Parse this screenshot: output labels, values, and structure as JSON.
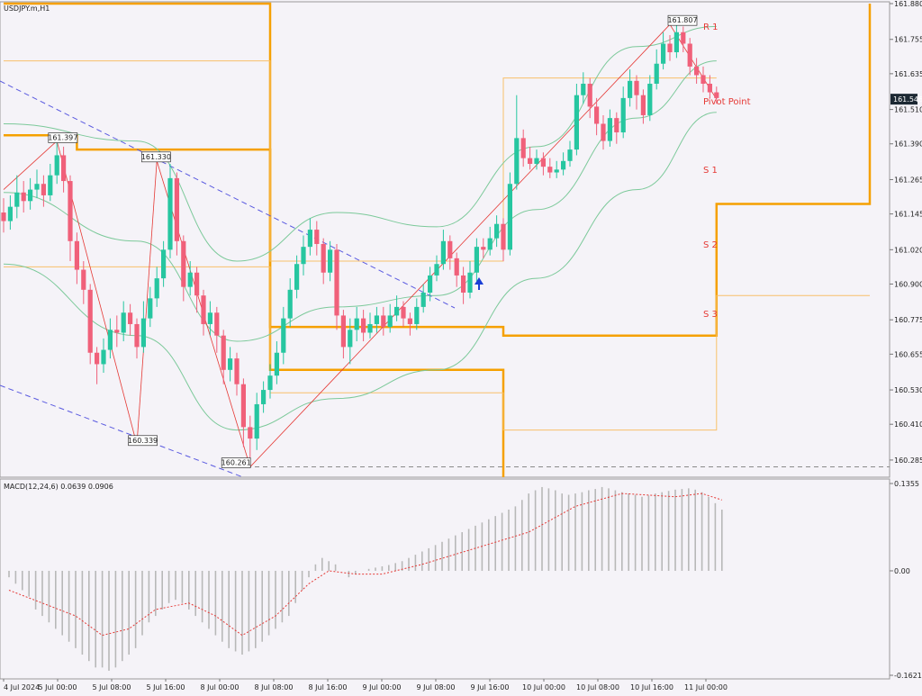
{
  "symbol_title": "USDJPY.m,H1",
  "macd_title": "MACD(12,24,6) 0.0639 0.0906",
  "colors": {
    "background": "#f5f3f8",
    "bull": "#26c6a0",
    "bear": "#f0607a",
    "bollinger": "#7cc99a",
    "pivot_thick": "#f5a000",
    "pivot_thin": "#f8c06a",
    "zigzag": "#e53935",
    "trend": "#5a5ae0",
    "macd_hist": "#b8b8b8",
    "macd_signal": "#e53935",
    "arrow": "#1a3fd6",
    "price_marker": "#1c2833"
  },
  "pivot_labels": [
    "R 1",
    "Pivot Point",
    "S 1",
    "S 2",
    "S 3"
  ],
  "chart_data": [
    {
      "type": "candlestick",
      "title": "USDJPY.m,H1",
      "x_ticks": [
        "4 Jul 2024",
        "5 Jul 00:00",
        "5 Jul 08:00",
        "5 Jul 16:00",
        "8 Jul 00:00",
        "8 Jul 08:00",
        "8 Jul 16:00",
        "9 Jul 00:00",
        "9 Jul 08:00",
        "9 Jul 16:00",
        "10 Jul 00:00",
        "10 Jul 08:00",
        "10 Jul 16:00",
        "11 Jul 00:00"
      ],
      "y_ticks": [
        161.88,
        161.755,
        161.635,
        161.51,
        161.39,
        161.265,
        161.145,
        161.02,
        160.9,
        160.775,
        160.655,
        160.53,
        160.41,
        160.285
      ],
      "ylim": [
        160.225,
        161.88
      ],
      "current_price": 161.546,
      "annotations": [
        {
          "text": "161.807",
          "price": 161.807
        },
        {
          "text": "161.397",
          "price": 161.397
        },
        {
          "text": "161.330",
          "price": 161.33
        },
        {
          "text": "160.339",
          "price": 160.339
        },
        {
          "text": "160.261",
          "price": 160.261
        }
      ],
      "candles": [
        [
          161.15,
          161.12,
          161.2,
          161.08
        ],
        [
          161.12,
          161.17,
          161.21,
          161.09
        ],
        [
          161.17,
          161.22,
          161.28,
          161.13
        ],
        [
          161.22,
          161.19,
          161.26,
          161.15
        ],
        [
          161.19,
          161.23,
          161.27,
          161.16
        ],
        [
          161.23,
          161.25,
          161.3,
          161.2
        ],
        [
          161.25,
          161.21,
          161.28,
          161.17
        ],
        [
          161.21,
          161.28,
          161.32,
          161.19
        ],
        [
          161.28,
          161.35,
          161.4,
          161.25
        ],
        [
          161.35,
          161.26,
          161.38,
          161.22
        ],
        [
          161.26,
          161.05,
          161.28,
          160.98
        ],
        [
          161.05,
          160.95,
          161.08,
          160.9
        ],
        [
          160.95,
          160.88,
          160.98,
          160.83
        ],
        [
          160.88,
          160.66,
          160.9,
          160.62
        ],
        [
          160.66,
          160.62,
          160.68,
          160.55
        ],
        [
          160.62,
          160.67,
          160.71,
          160.59
        ],
        [
          160.67,
          160.74,
          160.78,
          160.64
        ],
        [
          160.74,
          160.73,
          160.79,
          160.68
        ],
        [
          160.73,
          160.8,
          160.84,
          160.7
        ],
        [
          160.8,
          160.76,
          160.83,
          160.72
        ],
        [
          160.76,
          160.68,
          160.78,
          160.64
        ],
        [
          160.68,
          160.78,
          160.84,
          160.66
        ],
        [
          160.78,
          160.85,
          160.89,
          160.75
        ],
        [
          160.85,
          160.92,
          160.96,
          160.82
        ],
        [
          160.92,
          161.02,
          161.05,
          160.89
        ],
        [
          161.02,
          161.27,
          161.32,
          160.99
        ],
        [
          161.27,
          161.05,
          161.29,
          161.0
        ],
        [
          161.05,
          160.89,
          161.07,
          160.84
        ],
        [
          160.89,
          160.94,
          160.98,
          160.86
        ],
        [
          160.94,
          160.86,
          160.96,
          160.8
        ],
        [
          160.86,
          160.76,
          160.88,
          160.72
        ],
        [
          160.76,
          160.8,
          160.84,
          160.72
        ],
        [
          160.8,
          160.72,
          160.82,
          160.66
        ],
        [
          160.72,
          160.6,
          160.74,
          160.55
        ],
        [
          160.6,
          160.64,
          160.68,
          160.56
        ],
        [
          160.64,
          160.55,
          160.66,
          160.51
        ],
        [
          160.55,
          160.4,
          160.57,
          160.33
        ],
        [
          160.4,
          160.36,
          160.44,
          160.29
        ],
        [
          160.36,
          160.48,
          160.52,
          160.32
        ],
        [
          160.48,
          160.53,
          160.56,
          160.45
        ],
        [
          160.53,
          160.58,
          160.62,
          160.5
        ],
        [
          160.58,
          160.66,
          160.7,
          160.55
        ],
        [
          160.66,
          160.78,
          160.82,
          160.62
        ],
        [
          160.78,
          160.88,
          160.92,
          160.75
        ],
        [
          160.88,
          160.97,
          161.0,
          160.85
        ],
        [
          160.97,
          161.03,
          161.07,
          160.93
        ],
        [
          161.03,
          161.09,
          161.13,
          161.0
        ],
        [
          161.09,
          161.04,
          161.12,
          161.0
        ],
        [
          161.04,
          160.94,
          161.06,
          160.9
        ],
        [
          160.94,
          161.02,
          161.05,
          160.91
        ],
        [
          161.02,
          160.79,
          161.04,
          160.74
        ],
        [
          160.79,
          160.68,
          160.81,
          160.64
        ],
        [
          160.68,
          160.74,
          160.78,
          160.62
        ],
        [
          160.74,
          160.78,
          160.82,
          160.7
        ],
        [
          160.78,
          160.73,
          160.81,
          160.7
        ],
        [
          160.73,
          160.76,
          160.8,
          160.71
        ],
        [
          160.76,
          160.79,
          160.82,
          160.73
        ],
        [
          160.79,
          160.75,
          160.82,
          160.72
        ],
        [
          160.75,
          160.79,
          160.83,
          160.73
        ],
        [
          160.79,
          160.82,
          160.86,
          160.77
        ],
        [
          160.82,
          160.78,
          160.84,
          160.75
        ],
        [
          160.78,
          160.76,
          160.8,
          160.72
        ],
        [
          160.76,
          160.82,
          160.85,
          160.74
        ],
        [
          160.82,
          160.87,
          160.9,
          160.8
        ],
        [
          160.87,
          160.93,
          160.96,
          160.84
        ],
        [
          160.93,
          160.97,
          161.0,
          160.91
        ],
        [
          160.97,
          161.05,
          161.09,
          160.95
        ],
        [
          161.05,
          160.99,
          161.07,
          160.95
        ],
        [
          160.99,
          160.93,
          161.01,
          160.89
        ],
        [
          160.93,
          160.87,
          160.96,
          160.83
        ],
        [
          160.87,
          160.94,
          160.98,
          160.85
        ],
        [
          160.94,
          161.03,
          161.06,
          160.91
        ],
        [
          161.03,
          161.02,
          161.06,
          160.99
        ],
        [
          161.02,
          161.06,
          161.1,
          161.0
        ],
        [
          161.06,
          161.11,
          161.14,
          161.03
        ],
        [
          161.11,
          161.02,
          161.13,
          160.98
        ],
        [
          161.02,
          161.25,
          161.29,
          161.0
        ],
        [
          161.25,
          161.41,
          161.56,
          161.23
        ],
        [
          161.41,
          161.34,
          161.44,
          161.31
        ],
        [
          161.34,
          161.32,
          161.38,
          161.3
        ],
        [
          161.32,
          161.34,
          161.37,
          161.3
        ],
        [
          161.34,
          161.31,
          161.36,
          161.28
        ],
        [
          161.31,
          161.29,
          161.34,
          161.27
        ],
        [
          161.29,
          161.3,
          161.33,
          161.27
        ],
        [
          161.3,
          161.33,
          161.36,
          161.28
        ],
        [
          161.33,
          161.37,
          161.4,
          161.31
        ],
        [
          161.37,
          161.56,
          161.6,
          161.35
        ],
        [
          161.56,
          161.6,
          161.64,
          161.53
        ],
        [
          161.6,
          161.52,
          161.62,
          161.48
        ],
        [
          161.52,
          161.46,
          161.55,
          161.42
        ],
        [
          161.46,
          161.4,
          161.49,
          161.37
        ],
        [
          161.4,
          161.48,
          161.51,
          161.38
        ],
        [
          161.48,
          161.43,
          161.5,
          161.39
        ],
        [
          161.43,
          161.55,
          161.59,
          161.41
        ],
        [
          161.55,
          161.61,
          161.65,
          161.52
        ],
        [
          161.61,
          161.56,
          161.63,
          161.51
        ],
        [
          161.56,
          161.49,
          161.58,
          161.46
        ],
        [
          161.49,
          161.6,
          161.63,
          161.47
        ],
        [
          161.6,
          161.67,
          161.72,
          161.58
        ],
        [
          161.67,
          161.74,
          161.78,
          161.65
        ],
        [
          161.74,
          161.71,
          161.77,
          161.68
        ],
        [
          161.71,
          161.78,
          161.81,
          161.69
        ],
        [
          161.78,
          161.74,
          161.8,
          161.71
        ],
        [
          161.74,
          161.66,
          161.76,
          161.63
        ],
        [
          161.66,
          161.63,
          161.69,
          161.6
        ],
        [
          161.63,
          161.6,
          161.66,
          161.57
        ],
        [
          161.6,
          161.57,
          161.63,
          161.55
        ],
        [
          161.57,
          161.55,
          161.59,
          161.53
        ]
      ],
      "bollinger": {
        "upper": [
          [
            0,
            161.46
          ],
          [
            20,
            161.4
          ],
          [
            35,
            160.98
          ],
          [
            50,
            161.15
          ],
          [
            65,
            161.1
          ],
          [
            80,
            161.38
          ],
          [
            95,
            161.73
          ],
          [
            107,
            161.8
          ]
        ],
        "middle": [
          [
            0,
            161.22
          ],
          [
            20,
            161.05
          ],
          [
            35,
            160.7
          ],
          [
            50,
            160.82
          ],
          [
            65,
            160.86
          ],
          [
            80,
            161.16
          ],
          [
            95,
            161.48
          ],
          [
            107,
            161.68
          ]
        ],
        "lower": [
          [
            0,
            160.97
          ],
          [
            20,
            160.72
          ],
          [
            35,
            160.39
          ],
          [
            50,
            160.5
          ],
          [
            65,
            160.6
          ],
          [
            80,
            160.92
          ],
          [
            95,
            161.23
          ],
          [
            107,
            161.5
          ]
        ]
      },
      "pivot_levels": {
        "thick": [
          [
            [
              0,
              161.42
            ],
            [
              11,
              161.42
            ],
            [
              11,
              161.37
            ],
            [
              40,
              161.37
            ],
            [
              40,
              160.75
            ],
            [
              75,
              160.75
            ],
            [
              75,
              160.72
            ],
            [
              107,
              160.72
            ],
            [
              107,
              161.18
            ],
            [
              130,
              161.18
            ],
            [
              130,
              161.88
            ]
          ],
          [
            [
              0,
              161.88
            ],
            [
              40,
              161.88
            ],
            [
              40,
              160.6
            ],
            [
              75,
              160.6
            ],
            [
              75,
              160.225
            ]
          ]
        ],
        "thin_upper": [
          [
            0,
            161.68
          ],
          [
            40,
            161.68
          ],
          [
            40,
            160.98
          ],
          [
            75,
            160.98
          ],
          [
            75,
            161.62
          ],
          [
            107,
            161.62
          ]
        ],
        "thin_lower": [
          [
            0,
            160.96
          ],
          [
            40,
            160.96
          ],
          [
            40,
            160.52
          ],
          [
            75,
            160.52
          ],
          [
            75,
            160.39
          ],
          [
            107,
            160.39
          ],
          [
            107,
            160.86
          ],
          [
            130,
            160.86
          ]
        ]
      },
      "macd": {
        "ylim": [
          -0.1621,
          0.1355
        ],
        "y_ticks": [
          0.1355,
          0.0,
          -0.1621
        ],
        "histogram": [
          -0.01,
          -0.02,
          -0.03,
          -0.04,
          -0.06,
          -0.07,
          -0.08,
          -0.09,
          -0.1,
          -0.11,
          -0.12,
          -0.13,
          -0.14,
          -0.15,
          -0.15,
          -0.155,
          -0.15,
          -0.14,
          -0.13,
          -0.12,
          -0.1,
          -0.08,
          -0.07,
          -0.06,
          -0.05,
          -0.045,
          -0.05,
          -0.06,
          -0.07,
          -0.08,
          -0.09,
          -0.1,
          -0.11,
          -0.12,
          -0.125,
          -0.13,
          -0.125,
          -0.12,
          -0.11,
          -0.1,
          -0.09,
          -0.08,
          -0.07,
          -0.05,
          -0.03,
          -0.01,
          0.01,
          0.02,
          0.015,
          0.01,
          0.0,
          -0.01,
          -0.005,
          0.0,
          0.003,
          0.005,
          0.007,
          0.009,
          0.012,
          0.015,
          0.02,
          0.025,
          0.03,
          0.035,
          0.04,
          0.045,
          0.05,
          0.055,
          0.06,
          0.065,
          0.07,
          0.075,
          0.08,
          0.085,
          0.09,
          0.095,
          0.1,
          0.11,
          0.12,
          0.125,
          0.13,
          0.128,
          0.125,
          0.12,
          0.118,
          0.12,
          0.122,
          0.125,
          0.127,
          0.13,
          0.128,
          0.125,
          0.122,
          0.12,
          0.118,
          0.115,
          0.117,
          0.12,
          0.122,
          0.124,
          0.126,
          0.127,
          0.128,
          0.126,
          0.122,
          0.115,
          0.105,
          0.095
        ],
        "signal": [
          [
            0,
            -0.03
          ],
          [
            10,
            -0.07
          ],
          [
            14,
            -0.1
          ],
          [
            18,
            -0.09
          ],
          [
            22,
            -0.06
          ],
          [
            27,
            -0.05
          ],
          [
            31,
            -0.07
          ],
          [
            35,
            -0.1
          ],
          [
            40,
            -0.07
          ],
          [
            45,
            -0.02
          ],
          [
            48,
            0.0
          ],
          [
            52,
            -0.005
          ],
          [
            56,
            -0.005
          ],
          [
            62,
            0.01
          ],
          [
            70,
            0.035
          ],
          [
            78,
            0.06
          ],
          [
            85,
            0.1
          ],
          [
            92,
            0.12
          ],
          [
            100,
            0.115
          ],
          [
            104,
            0.12
          ],
          [
            107,
            0.11
          ]
        ]
      }
    }
  ]
}
